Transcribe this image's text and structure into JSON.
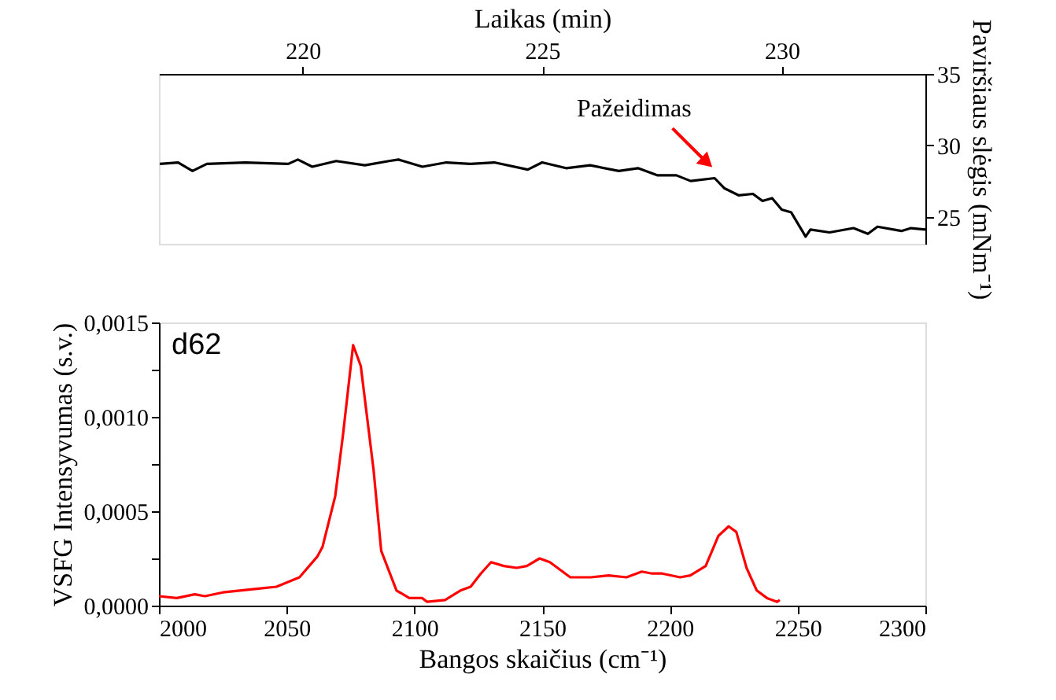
{
  "chart_data": [
    {
      "type": "line",
      "xlabel": "Laikas (min)",
      "ylabel": "Paviršiaus slėgis (mNm⁻¹)",
      "xlim": [
        217,
        233
      ],
      "xticks": [
        220,
        225,
        230
      ],
      "ylim": [
        23.1,
        35
      ],
      "yticks": [
        25,
        30,
        35
      ],
      "grid": false,
      "marker": "none",
      "line_style": "solid",
      "annotations": [
        "Pažeidimas"
      ],
      "series": [
        {
          "color": "#000000",
          "x": [
            217.02,
            217.4,
            217.7,
            218.0,
            218.8,
            219.7,
            219.9,
            220.2,
            220.7,
            221.3,
            221.8,
            222.0,
            222.5,
            223.0,
            223.5,
            224.0,
            224.7,
            225.0,
            225.5,
            226.0,
            226.6,
            227.0,
            227.4,
            227.8,
            228.1,
            228.6,
            228.8,
            229.1,
            229.4,
            229.6,
            229.8,
            230.0,
            230.2,
            230.5,
            230.6,
            231.0,
            231.5,
            231.8,
            232.0,
            232.5,
            232.7,
            233.0
          ],
          "values": [
            28.7,
            28.8,
            28.2,
            28.7,
            28.8,
            28.7,
            29.0,
            28.5,
            28.9,
            28.6,
            28.9,
            29.0,
            28.5,
            28.8,
            28.7,
            28.8,
            28.3,
            28.8,
            28.4,
            28.6,
            28.2,
            28.4,
            27.9,
            27.9,
            27.5,
            27.7,
            27.0,
            26.5,
            26.6,
            26.1,
            26.3,
            25.5,
            25.3,
            23.6,
            24.1,
            23.9,
            24.2,
            23.8,
            24.3,
            24.0,
            24.2,
            24.1
          ]
        }
      ]
    },
    {
      "type": "line",
      "xlabel": "Bangos skaičius (cm⁻¹)",
      "ylabel": "VSFG Intensyvumas (s.v.)",
      "xlim": [
        2000,
        2300
      ],
      "xticks": [
        2000,
        2050,
        2100,
        2150,
        2200,
        2250,
        2300
      ],
      "ylim": [
        0,
        0.0015
      ],
      "yticks": [
        {
          "value": 0,
          "label": "0,0000"
        },
        {
          "value": 0.00025,
          "label": null
        },
        {
          "value": 0.0005,
          "label": "0,0005"
        },
        {
          "value": 0.00075,
          "label": null
        },
        {
          "value": 0.001,
          "label": "0,0010"
        },
        {
          "value": 0.00125,
          "label": null
        },
        {
          "value": 0.0015,
          "label": "0,0015"
        }
      ],
      "grid": false,
      "marker": "none",
      "line_style": "solid",
      "annotations": [
        "d62"
      ],
      "series": [
        {
          "color": "#ff0000",
          "x": [
            2000,
            2007,
            2014,
            2018,
            2025,
            2039,
            2046,
            2055,
            2062,
            2064,
            2069,
            2072,
            2076,
            2079,
            2084,
            2087,
            2093,
            2098,
            2103,
            2105,
            2112,
            2118,
            2122,
            2126,
            2130,
            2135,
            2140,
            2144,
            2149,
            2153,
            2158,
            2161,
            2169,
            2176,
            2183,
            2189,
            2193,
            2197,
            2204,
            2208,
            2214,
            2219,
            2223,
            2226,
            2230,
            2234,
            2238,
            2242,
            2243
          ],
          "values": [
            5e-05,
            4e-05,
            6e-05,
            5e-05,
            7e-05,
            9e-05,
            0.0001,
            0.00015,
            0.00026,
            0.00031,
            0.00058,
            0.0009,
            0.00138,
            0.00127,
            0.00072,
            0.00029,
            8e-05,
            4e-05,
            4e-05,
            2e-05,
            3e-05,
            8e-05,
            0.0001,
            0.00017,
            0.00023,
            0.00021,
            0.0002,
            0.00021,
            0.00025,
            0.00023,
            0.00018,
            0.00015,
            0.00015,
            0.00016,
            0.00015,
            0.00018,
            0.00017,
            0.00017,
            0.00015,
            0.00016,
            0.00021,
            0.00037,
            0.00042,
            0.00039,
            0.0002,
            8e-05,
            4e-05,
            2e-05,
            3e-05
          ]
        }
      ]
    }
  ]
}
